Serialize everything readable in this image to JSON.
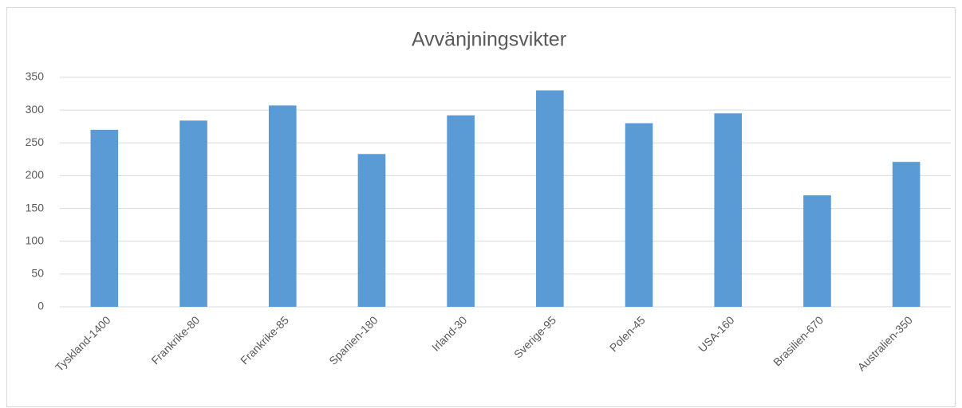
{
  "chart_data": {
    "type": "bar",
    "title": "Avvänjningsvikter",
    "categories": [
      "Tyskland-1400",
      "Frankrike-80",
      "Frankrike-85",
      "Spanien-180",
      "Irland-30",
      "Sverige-95",
      "Polen-45",
      "USA-160",
      "Brasilien-670",
      "Australien-350"
    ],
    "values": [
      270,
      284,
      307,
      233,
      292,
      330,
      280,
      295,
      170,
      221
    ],
    "color": "#5b9bd5",
    "ylim": [
      0,
      350
    ],
    "yticks": [
      0,
      50,
      100,
      150,
      200,
      250,
      300,
      350
    ],
    "grid": true
  }
}
